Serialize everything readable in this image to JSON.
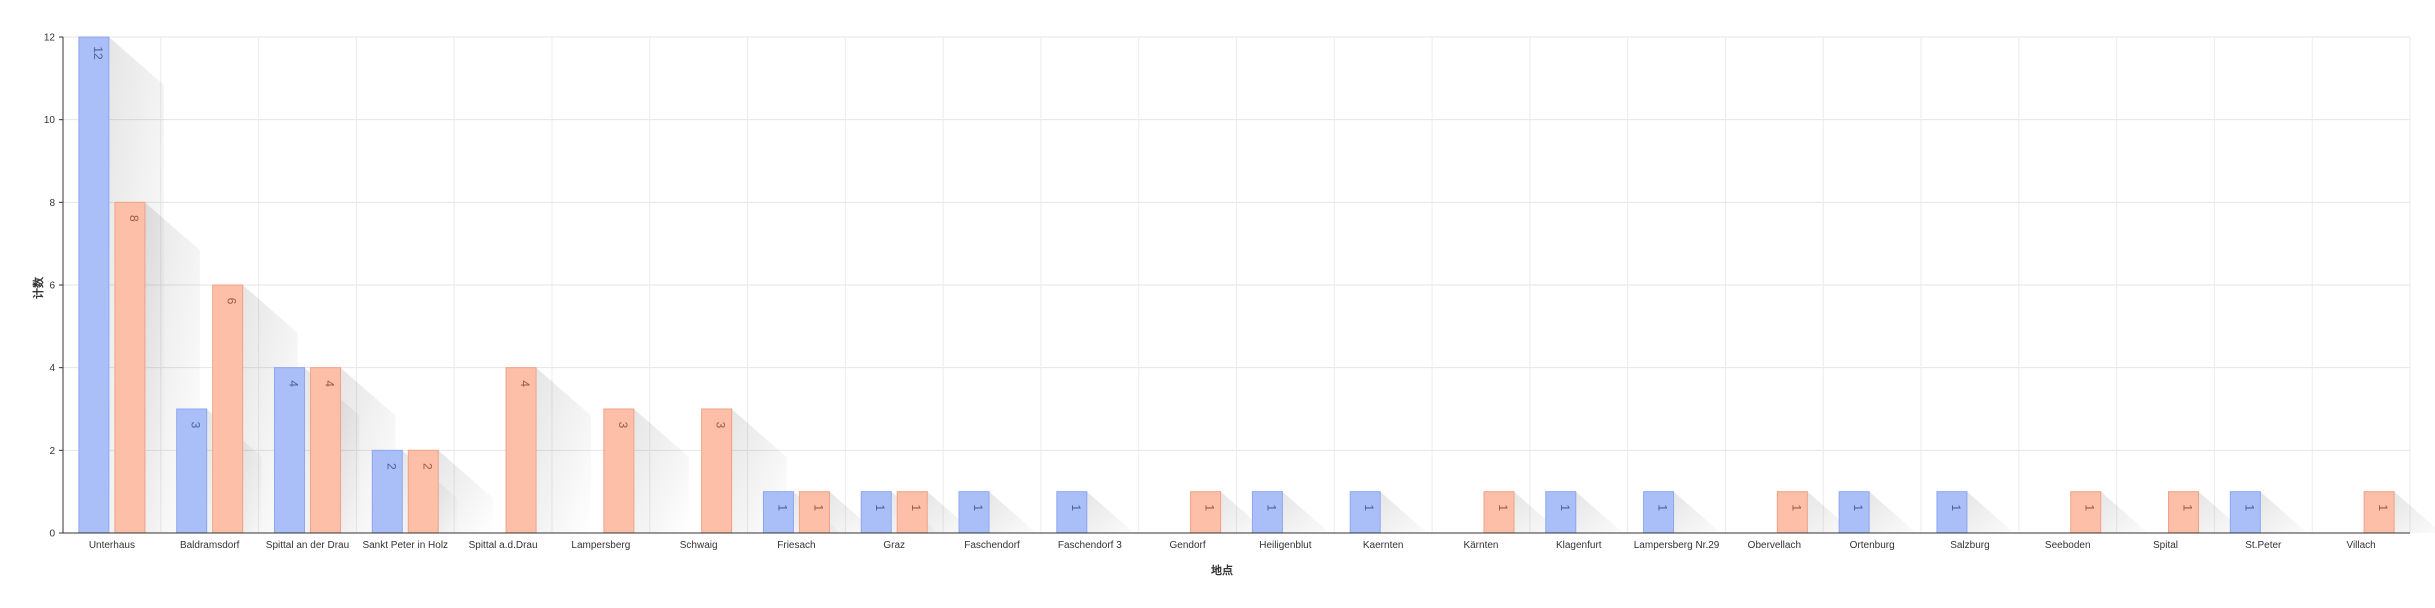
{
  "chart_data": {
    "type": "bar",
    "title": "",
    "xlabel": "地点",
    "ylabel": "计数",
    "ylim": [
      0,
      12
    ],
    "yticks": [
      0,
      2,
      4,
      6,
      8,
      10,
      12
    ],
    "grid": true,
    "legend": "none",
    "categories": [
      "Unterhaus",
      "Baldramsdorf",
      "Spittal an der Drau",
      "Sankt Peter in Holz",
      "Spittal a.d.Drau",
      "Lampersberg",
      "Schwaig",
      "Friesach",
      "Graz",
      "Faschendorf",
      "Faschendorf 3",
      "Gendorf",
      "Heiligenblut",
      "Kaernten",
      "Kärnten",
      "Klagenfurt",
      "Lampersberg Nr.29",
      "Obervellach",
      "Ortenburg",
      "Salzburg",
      "Seeboden",
      "Spital",
      "St.Peter",
      "Villach"
    ],
    "series": [
      {
        "values": [
          12,
          3,
          4,
          2,
          0,
          0,
          0,
          1,
          1,
          1,
          1,
          0,
          1,
          1,
          0,
          1,
          1,
          0,
          1,
          1,
          0,
          0,
          1,
          0
        ],
        "color": "#aabff8",
        "stroke": "#8fa6f0",
        "label_color": "#4a5f9e"
      },
      {
        "values": [
          8,
          6,
          4,
          2,
          4,
          3,
          3,
          1,
          1,
          0,
          0,
          1,
          0,
          0,
          1,
          0,
          0,
          1,
          0,
          0,
          1,
          1,
          0,
          1
        ],
        "color": "#fdbfa8",
        "stroke": "#f1a187",
        "label_color": "#9a5a43"
      }
    ]
  }
}
